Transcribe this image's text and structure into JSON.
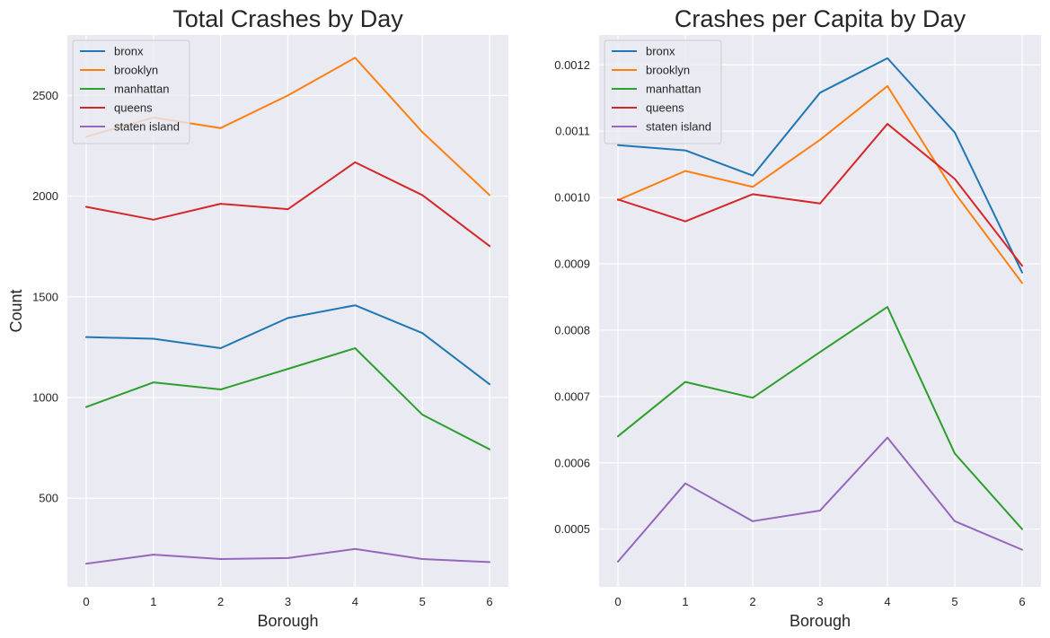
{
  "colors": {
    "bronx": "#1f77b4",
    "brooklyn": "#ff7f0e",
    "manhattan": "#2ca02c",
    "queens": "#d62728",
    "staten island": "#9467bd"
  },
  "chart_data": [
    {
      "type": "line",
      "title": "Total Crashes by Day",
      "xlabel": "Borough",
      "ylabel": "Count",
      "x": [
        0,
        1,
        2,
        3,
        4,
        5,
        6
      ],
      "xlim": [
        -0.28,
        6.28
      ],
      "ylim": [
        60,
        2800
      ],
      "yticks": [
        500,
        1000,
        1500,
        2000,
        2500
      ],
      "ytick_labels": [
        "500",
        "1000",
        "1500",
        "2000",
        "2500"
      ],
      "grid": true,
      "legend_position": "upper-left",
      "series": [
        {
          "name": "bronx",
          "values": [
            1300,
            1292,
            1245,
            1395,
            1458,
            1320,
            1066
          ]
        },
        {
          "name": "brooklyn",
          "values": [
            2295,
            2390,
            2338,
            2500,
            2687,
            2318,
            2005
          ]
        },
        {
          "name": "manhattan",
          "values": [
            953,
            1075,
            1040,
            1142,
            1245,
            915,
            743
          ]
        },
        {
          "name": "queens",
          "values": [
            1947,
            1883,
            1962,
            1935,
            2168,
            2005,
            1752
          ]
        },
        {
          "name": "staten island",
          "values": [
            175,
            220,
            198,
            203,
            248,
            198,
            183
          ]
        }
      ]
    },
    {
      "type": "line",
      "title": "Crashes per Capita by Day",
      "xlabel": "Borough",
      "ylabel": "",
      "x": [
        0,
        1,
        2,
        3,
        4,
        5,
        6
      ],
      "xlim": [
        -0.28,
        6.28
      ],
      "ylim": [
        0.000413,
        0.001245
      ],
      "yticks": [
        0.0005,
        0.0006,
        0.0007,
        0.0008,
        0.0009,
        0.001,
        0.0011,
        0.0012
      ],
      "ytick_labels": [
        "0.0005",
        "0.0006",
        "0.0007",
        "0.0008",
        "0.0009",
        "0.0010",
        "0.0011",
        "0.0012"
      ],
      "grid": true,
      "legend_position": "upper-left",
      "series": [
        {
          "name": "bronx",
          "values": [
            0.001079,
            0.001071,
            0.001033,
            0.001158,
            0.00121,
            0.001098,
            0.000887
          ]
        },
        {
          "name": "brooklyn",
          "values": [
            0.000996,
            0.00104,
            0.001016,
            0.001087,
            0.001168,
            0.001007,
            0.000871
          ]
        },
        {
          "name": "manhattan",
          "values": [
            0.00064,
            0.000722,
            0.000698,
            0.000767,
            0.000835,
            0.000614,
            0.0005
          ]
        },
        {
          "name": "queens",
          "values": [
            0.000997,
            0.000964,
            0.001005,
            0.000991,
            0.001111,
            0.001028,
            0.000897
          ]
        },
        {
          "name": "staten island",
          "values": [
            0.000451,
            0.000569,
            0.000512,
            0.000528,
            0.000638,
            0.000512,
            0.000469
          ]
        }
      ]
    }
  ]
}
